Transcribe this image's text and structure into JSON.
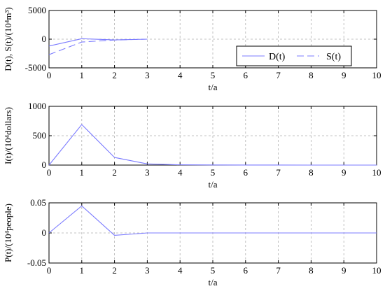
{
  "chart_data": [
    {
      "type": "line",
      "xlabel": "t/a",
      "ylabel": "D(t), S(t)/(10⁴m³)",
      "xlim": [
        0,
        10
      ],
      "ylim": [
        -5000,
        5000
      ],
      "xticks": [
        0,
        1,
        2,
        3,
        4,
        5,
        6,
        7,
        8,
        9,
        10
      ],
      "yticks": [
        -5000,
        0,
        5000
      ],
      "grid": true,
      "legend_position": "lower-right",
      "series": [
        {
          "name": "D(t)",
          "color": "#7b7bff",
          "dash": "solid",
          "x": [
            0,
            1,
            2,
            3
          ],
          "y": [
            -1200,
            80,
            -130,
            0
          ]
        },
        {
          "name": "S(t)",
          "color": "#7b7bff",
          "dash": "dashed",
          "x": [
            0,
            1,
            2,
            3
          ],
          "y": [
            -2700,
            -500,
            -150,
            0
          ]
        }
      ]
    },
    {
      "type": "line",
      "xlabel": "t/a",
      "ylabel": "I(t)/(10⁴dollars)",
      "xlim": [
        0,
        10
      ],
      "ylim": [
        0,
        1000
      ],
      "xticks": [
        0,
        1,
        2,
        3,
        4,
        5,
        6,
        7,
        8,
        9,
        10
      ],
      "yticks": [
        0,
        500,
        1000
      ],
      "grid": true,
      "series": [
        {
          "color": "#7b7bff",
          "dash": "solid",
          "x": [
            0,
            1,
            2,
            3,
            4,
            5,
            6,
            7,
            8,
            9,
            10
          ],
          "y": [
            0,
            690,
            130,
            20,
            5,
            2,
            1,
            1,
            0,
            0,
            0
          ]
        }
      ]
    },
    {
      "type": "line",
      "xlabel": "t/a",
      "ylabel": "P(t)/(10⁴people)",
      "xlim": [
        0,
        10
      ],
      "ylim": [
        -0.05,
        0.05
      ],
      "xticks": [
        0,
        1,
        2,
        3,
        4,
        5,
        6,
        7,
        8,
        9,
        10
      ],
      "yticks": [
        -0.05,
        0,
        0.05
      ],
      "ytick_labels": [
        "-0.05",
        "0",
        "0.05"
      ],
      "grid": true,
      "series": [
        {
          "color": "#7b7bff",
          "dash": "solid",
          "x": [
            0,
            1,
            2,
            3,
            4,
            5,
            6,
            7,
            8,
            9,
            10
          ],
          "y": [
            0,
            0.045,
            -0.004,
            0,
            0,
            0,
            0,
            0,
            0,
            0,
            0
          ]
        }
      ]
    }
  ]
}
